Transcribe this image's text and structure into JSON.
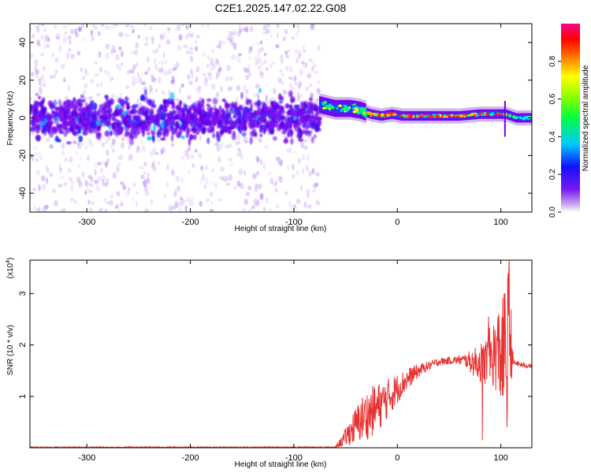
{
  "title": "C2E1.2025.147.02.22.G08",
  "colors": {
    "snr_line": "#e83232",
    "axis": "#000000",
    "cb_cap": "#ffffff"
  },
  "chart_data": [
    {
      "type": "heatmap",
      "xlabel": "Height of straight line (km)",
      "ylabel": "Frequency (Hz)",
      "xlim": [
        -355,
        130
      ],
      "ylim": [
        -50,
        50
      ],
      "xticks": [
        -300,
        -200,
        -100,
        0,
        100
      ],
      "yticks": [
        -40,
        -20,
        0,
        20,
        40
      ],
      "xtick_labels": [
        "-300",
        "-200",
        "-100",
        "0",
        "100"
      ],
      "ytick_labels": [
        "-40",
        "-20",
        "0",
        "20",
        "40"
      ],
      "colorbar": {
        "label": "Normalized spectral amplitude",
        "range": [
          0,
          1
        ],
        "ticks": [
          0,
          0.2,
          0.4,
          0.6,
          0.8
        ],
        "tick_labels": [
          "0.0",
          "0.2",
          "0.4",
          "0.6",
          "0.8"
        ],
        "colormap": "rainbow (purple-blue-cyan-green-yellow-red-magenta)"
      },
      "features": {
        "noisy_region_x": [
          -355,
          -75
        ],
        "noisy_band_center_hz": 0,
        "noisy_band_halfwidth_hz": 10,
        "trace": [
          {
            "x": -75,
            "y": 7
          },
          {
            "x": -60,
            "y": 5
          },
          {
            "x": -45,
            "y": 5
          },
          {
            "x": -35,
            "y": 4
          },
          {
            "x": -25,
            "y": 2
          },
          {
            "x": -15,
            "y": 1
          },
          {
            "x": -5,
            "y": 2
          },
          {
            "x": 5,
            "y": 1
          },
          {
            "x": 20,
            "y": 1
          },
          {
            "x": 40,
            "y": 1
          },
          {
            "x": 60,
            "y": 1
          },
          {
            "x": 80,
            "y": 2
          },
          {
            "x": 95,
            "y": 2
          },
          {
            "x": 105,
            "y": 2
          },
          {
            "x": 115,
            "y": 0
          },
          {
            "x": 130,
            "y": 0
          }
        ]
      }
    },
    {
      "type": "line",
      "xlabel": "Height of straight line (km)",
      "ylabel": "SNR (10 * v/v)",
      "yscale_label": "(x10",
      "yscale_exp": "4",
      "yscale_close": ")",
      "xlim": [
        -355,
        130
      ],
      "ylim": [
        0,
        3.65
      ],
      "xticks": [
        -300,
        -200,
        -100,
        0,
        100
      ],
      "yticks": [
        1,
        2,
        3
      ],
      "xtick_labels": [
        "-300",
        "-200",
        "-100",
        "0",
        "100"
      ],
      "ytick_labels": [
        "1",
        "2",
        "3"
      ],
      "series": [
        {
          "envelope": [
            {
              "x": -355,
              "lo": 0.0,
              "hi": 0.02
            },
            {
              "x": -60,
              "lo": 0.0,
              "hi": 0.02
            },
            {
              "x": -52,
              "lo": 0.02,
              "hi": 0.3
            },
            {
              "x": -45,
              "lo": 0.05,
              "hi": 0.6
            },
            {
              "x": -35,
              "lo": 0.1,
              "hi": 1.0
            },
            {
              "x": -25,
              "lo": 0.2,
              "hi": 1.2
            },
            {
              "x": -15,
              "lo": 0.4,
              "hi": 1.3
            },
            {
              "x": -5,
              "lo": 0.7,
              "hi": 1.4
            },
            {
              "x": 5,
              "lo": 1.0,
              "hi": 1.5
            },
            {
              "x": 15,
              "lo": 1.25,
              "hi": 1.6
            },
            {
              "x": 25,
              "lo": 1.45,
              "hi": 1.65
            },
            {
              "x": 40,
              "lo": 1.6,
              "hi": 1.75
            },
            {
              "x": 55,
              "lo": 1.63,
              "hi": 1.78
            },
            {
              "x": 65,
              "lo": 1.6,
              "hi": 1.82
            },
            {
              "x": 75,
              "lo": 1.35,
              "hi": 1.95
            },
            {
              "x": 85,
              "lo": 1.2,
              "hi": 2.15
            },
            {
              "x": 95,
              "lo": 1.1,
              "hi": 2.6
            },
            {
              "x": 103,
              "lo": 0.6,
              "hi": 3.0
            },
            {
              "x": 108,
              "lo": 0.9,
              "hi": 3.65
            },
            {
              "x": 112,
              "lo": 1.6,
              "hi": 1.72
            },
            {
              "x": 120,
              "lo": 1.56,
              "hi": 1.66
            },
            {
              "x": 130,
              "lo": 1.55,
              "hi": 1.63
            }
          ],
          "spikes": [
            {
              "x": 82,
              "y": 0.15
            },
            {
              "x": 88,
              "y": 2.55
            },
            {
              "x": 98,
              "y": 2.6
            },
            {
              "x": 103,
              "y": 3.0
            },
            {
              "x": 106,
              "y": 0.4
            },
            {
              "x": 108,
              "y": 3.65
            }
          ]
        }
      ]
    }
  ]
}
